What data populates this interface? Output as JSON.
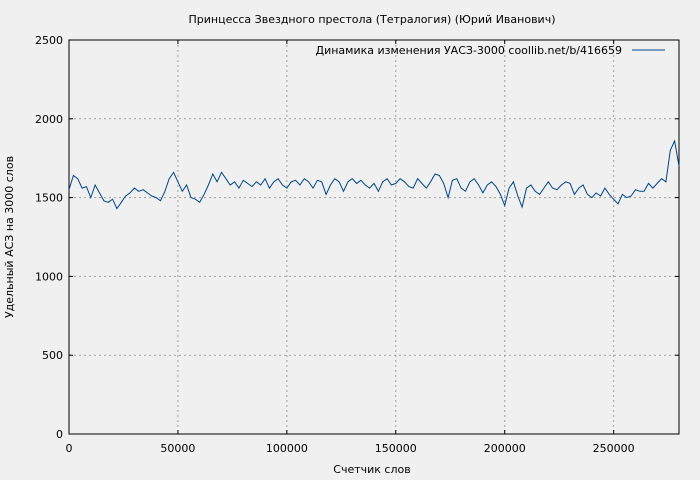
{
  "chart_data": {
    "type": "line",
    "title": "Принцесса Звездного престола (Тетралогия) (Юрий Иванович)",
    "xlabel": "Счетчик слов",
    "ylabel": "Удельный АСЗ на 3000 слов",
    "xlim": [
      0,
      280000
    ],
    "ylim": [
      0,
      2500
    ],
    "x_ticks": [
      0,
      50000,
      100000,
      150000,
      200000,
      250000
    ],
    "y_ticks": [
      0,
      500,
      1000,
      1500,
      2000,
      2500
    ],
    "grid": true,
    "legend_position": "top-right",
    "series": [
      {
        "name": "Динамика изменения УАСЗ-3000  coollib.net/b/416659",
        "color": "#00448a",
        "x": [
          0,
          2000,
          4000,
          6000,
          8000,
          10000,
          12000,
          14000,
          16000,
          18000,
          20000,
          22000,
          24000,
          26000,
          28000,
          30000,
          32000,
          34000,
          36000,
          38000,
          40000,
          42000,
          44000,
          46000,
          48000,
          50000,
          52000,
          54000,
          56000,
          58000,
          60000,
          62000,
          64000,
          66000,
          68000,
          70000,
          72000,
          74000,
          76000,
          78000,
          80000,
          82000,
          84000,
          86000,
          88000,
          90000,
          92000,
          94000,
          96000,
          98000,
          100000,
          102000,
          104000,
          106000,
          108000,
          110000,
          112000,
          114000,
          116000,
          118000,
          120000,
          122000,
          124000,
          126000,
          128000,
          130000,
          132000,
          134000,
          136000,
          138000,
          140000,
          142000,
          144000,
          146000,
          148000,
          150000,
          152000,
          154000,
          156000,
          158000,
          160000,
          162000,
          164000,
          166000,
          168000,
          170000,
          172000,
          174000,
          176000,
          178000,
          180000,
          182000,
          184000,
          186000,
          188000,
          190000,
          192000,
          194000,
          196000,
          198000,
          200000,
          202000,
          204000,
          206000,
          208000,
          210000,
          212000,
          214000,
          216000,
          218000,
          220000,
          222000,
          224000,
          226000,
          228000,
          230000,
          232000,
          234000,
          236000,
          238000,
          240000,
          242000,
          244000,
          246000,
          248000,
          250000,
          252000,
          254000,
          256000,
          258000,
          260000,
          262000,
          264000,
          266000,
          268000,
          270000,
          272000,
          274000,
          276000,
          278000,
          280000
        ],
        "values": [
          1550,
          1640,
          1620,
          1560,
          1570,
          1500,
          1580,
          1530,
          1480,
          1470,
          1490,
          1430,
          1470,
          1510,
          1530,
          1560,
          1540,
          1550,
          1530,
          1510,
          1500,
          1480,
          1540,
          1620,
          1660,
          1600,
          1540,
          1580,
          1500,
          1490,
          1470,
          1520,
          1580,
          1650,
          1600,
          1660,
          1620,
          1580,
          1600,
          1560,
          1610,
          1590,
          1570,
          1600,
          1580,
          1620,
          1560,
          1600,
          1620,
          1580,
          1560,
          1600,
          1610,
          1580,
          1620,
          1600,
          1560,
          1610,
          1600,
          1520,
          1580,
          1620,
          1600,
          1540,
          1600,
          1620,
          1590,
          1610,
          1580,
          1560,
          1590,
          1540,
          1600,
          1620,
          1580,
          1590,
          1620,
          1600,
          1570,
          1560,
          1620,
          1590,
          1560,
          1600,
          1650,
          1640,
          1590,
          1500,
          1610,
          1620,
          1560,
          1540,
          1600,
          1620,
          1580,
          1530,
          1580,
          1600,
          1570,
          1520,
          1450,
          1560,
          1600,
          1510,
          1440,
          1560,
          1580,
          1540,
          1520,
          1560,
          1600,
          1560,
          1550,
          1580,
          1600,
          1590,
          1520,
          1560,
          1580,
          1520,
          1500,
          1530,
          1510,
          1560,
          1520,
          1490,
          1460,
          1520,
          1500,
          1510,
          1550,
          1540,
          1540,
          1590,
          1560,
          1590,
          1620,
          1600,
          1800,
          1860,
          1700
        ]
      }
    ]
  }
}
